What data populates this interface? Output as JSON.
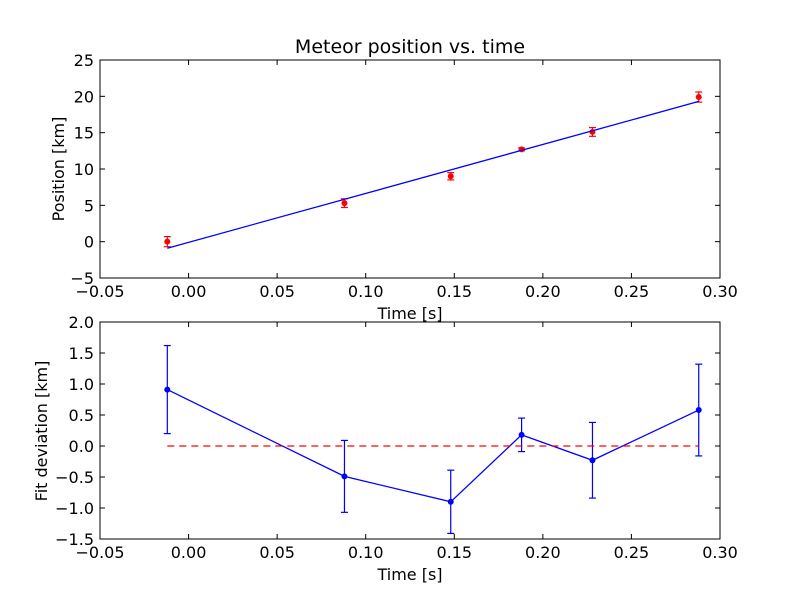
{
  "chart_data": [
    {
      "type": "scatter",
      "title": "Meteor position vs. time",
      "xlabel": "Time [s]",
      "ylabel": "Position [km]",
      "xlim": [
        -0.05,
        0.3
      ],
      "ylim": [
        -5,
        25
      ],
      "xticks": [
        "−0.05",
        "0.00",
        "0.05",
        "0.10",
        "0.15",
        "0.20",
        "0.25",
        "0.30"
      ],
      "yticks": [
        "−5",
        "0",
        "5",
        "10",
        "15",
        "20",
        "25"
      ],
      "grid": false,
      "series": [
        {
          "kind": "errorbar",
          "color": "#ff0000",
          "x": [
            -0.012,
            0.088,
            0.148,
            0.188,
            0.228,
            0.288
          ],
          "y": [
            0.0,
            5.3,
            9.0,
            12.7,
            15.1,
            19.9
          ],
          "yerr": [
            0.7,
            0.6,
            0.5,
            0.2,
            0.6,
            0.7
          ]
        },
        {
          "kind": "line",
          "color": "#0000ff",
          "x": [
            -0.012,
            0.288
          ],
          "y": [
            -0.9,
            19.3
          ]
        }
      ]
    },
    {
      "type": "line",
      "title": "",
      "xlabel": "Time [s]",
      "ylabel": "Fit deviation [km]",
      "xlim": [
        -0.05,
        0.3
      ],
      "ylim": [
        -1.5,
        2.0
      ],
      "xticks": [
        "−0.05",
        "0.00",
        "0.05",
        "0.10",
        "0.15",
        "0.20",
        "0.25",
        "0.30"
      ],
      "yticks": [
        "−1.5",
        "−1.0",
        "−0.5",
        "0.0",
        "0.5",
        "1.0",
        "1.5",
        "2.0"
      ],
      "grid": false,
      "series": [
        {
          "kind": "errorbar-line",
          "color": "#0000ff",
          "x": [
            -0.012,
            0.088,
            0.148,
            0.188,
            0.228,
            0.288
          ],
          "y": [
            0.91,
            -0.49,
            -0.9,
            0.18,
            -0.23,
            0.58
          ],
          "yerr": [
            0.71,
            0.58,
            0.51,
            0.27,
            0.61,
            0.74
          ]
        },
        {
          "kind": "dashed-line",
          "color": "#ff0000",
          "x": [
            -0.012,
            0.288
          ],
          "y": [
            0.0,
            0.0
          ]
        }
      ]
    }
  ]
}
